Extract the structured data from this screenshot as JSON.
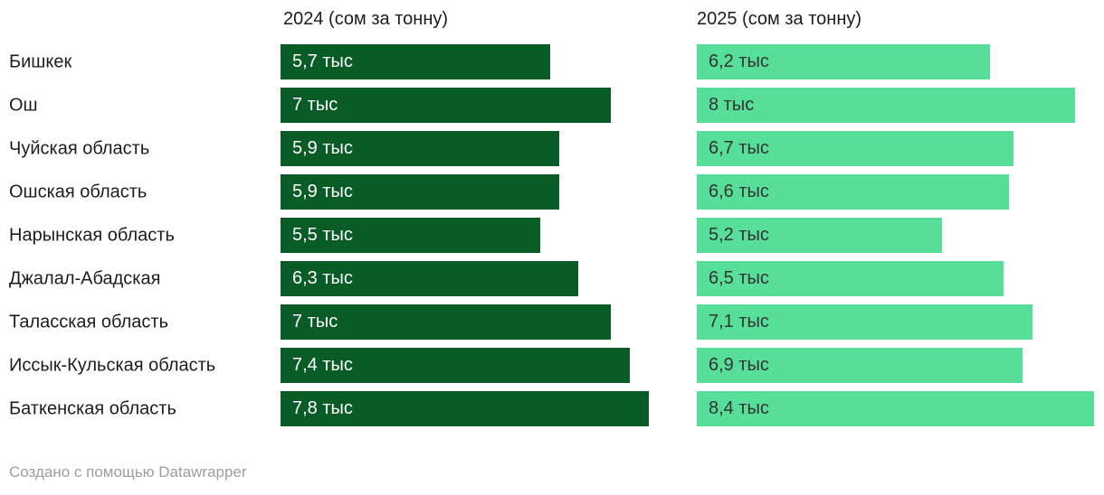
{
  "chart_data": {
    "type": "bar",
    "orientation": "horizontal",
    "layout": "two-column-split-bars",
    "grid": false,
    "value_labels": "inside-start",
    "xlim": [
      0,
      8.6
    ],
    "categories": [
      "Бишкек",
      "Ош",
      "Чуйская область",
      "Ошская область",
      "Нарынская область",
      "Джалал-Абадская",
      "Таласская область",
      "Иссык-Кульская область",
      "Баткенская область"
    ],
    "series": [
      {
        "name": "2024 (сом за тонну)",
        "values": [
          5.7,
          7,
          5.9,
          5.9,
          5.5,
          6.3,
          7,
          7.4,
          7.8
        ],
        "labels": [
          "5,7 тыс",
          "7 тыс",
          "5,9 тыс",
          "5,9 тыс",
          "5,5 тыс",
          "6,3 тыс",
          "7 тыс",
          "7,4 тыс",
          "7,8 тыс"
        ],
        "bar_color": "#095c26",
        "label_color": "#ffffff"
      },
      {
        "name": "2025 (сом за тонну)",
        "values": [
          6.2,
          8,
          6.7,
          6.6,
          5.2,
          6.5,
          7.1,
          6.9,
          8.4
        ],
        "labels": [
          "6,2 тыс",
          "8 тыс",
          "6,7 тыс",
          "6,6 тыс",
          "5,2 тыс",
          "6,5 тыс",
          "7,1 тыс",
          "6,9 тыс",
          "8,4 тыс"
        ],
        "bar_color": "#57df9a",
        "label_color": "#333333"
      }
    ],
    "text_color": "#1d1d1d"
  },
  "footer": {
    "attribution": "Создано с помощью Datawrapper"
  }
}
